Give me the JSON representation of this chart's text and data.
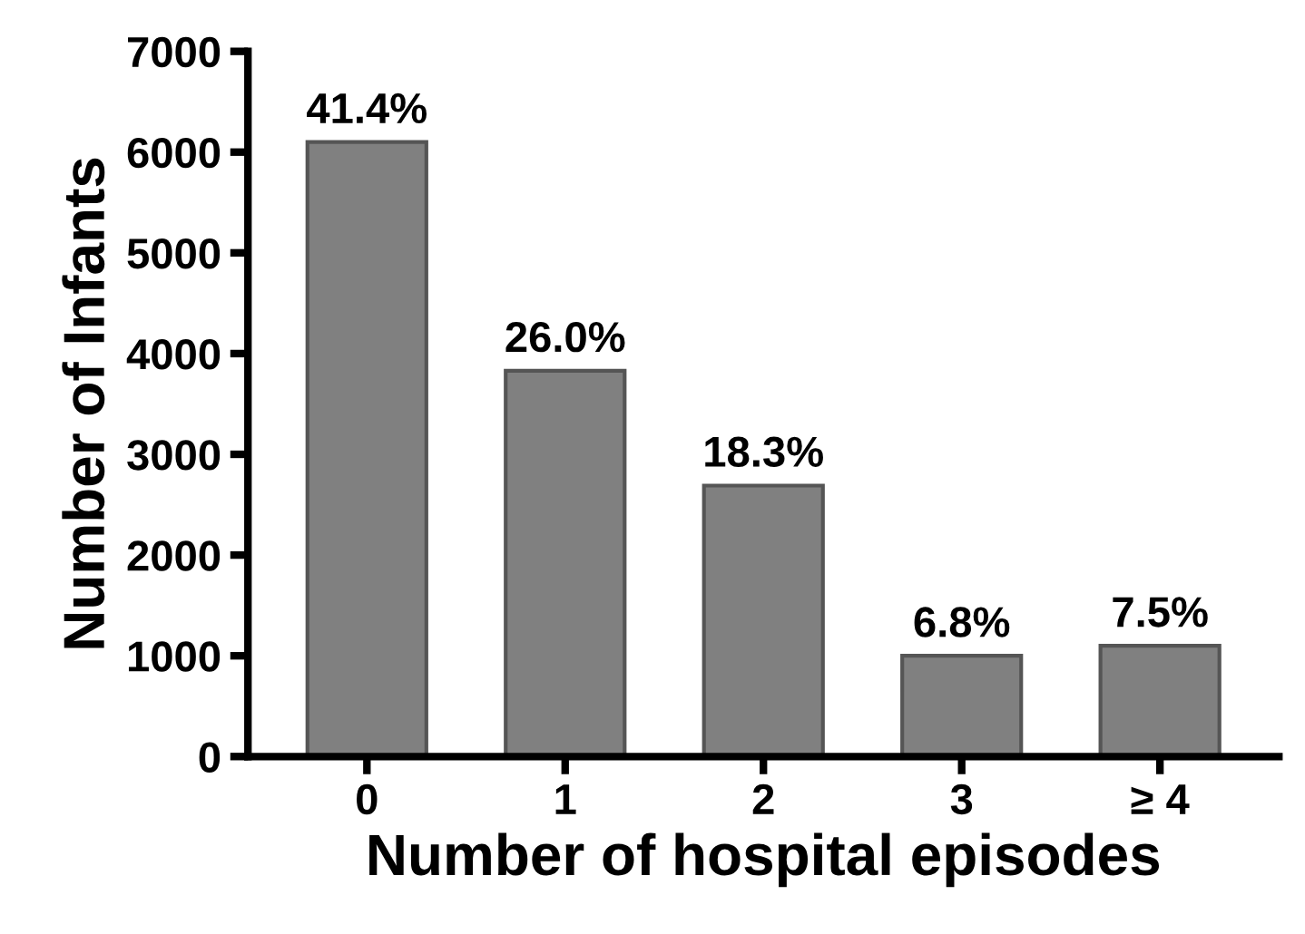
{
  "chart_data": {
    "type": "bar",
    "xlabel": "Number of hospital episodes",
    "ylabel": "Number of Infants",
    "categories": [
      "0",
      "1",
      "2",
      "3",
      "≥ 4"
    ],
    "values": [
      6100,
      3830,
      2690,
      1000,
      1100
    ],
    "annotations": [
      {
        "text": "41.4%",
        "x": "0",
        "y": 6100
      },
      {
        "text": "26.0%",
        "x": "1",
        "y": 3830
      },
      {
        "text": "18.3%",
        "x": "2",
        "y": 2690
      },
      {
        "text": "6.8%",
        "x": "3",
        "y": 1000
      },
      {
        "text": "7.5%",
        "x": "≥ 4",
        "y": 1100
      }
    ],
    "color": "#808080",
    "ylim": [
      0,
      7000
    ],
    "yticks": [
      0,
      1000,
      2000,
      3000,
      4000,
      5000,
      6000,
      7000
    ],
    "grid": false,
    "legend": false
  }
}
